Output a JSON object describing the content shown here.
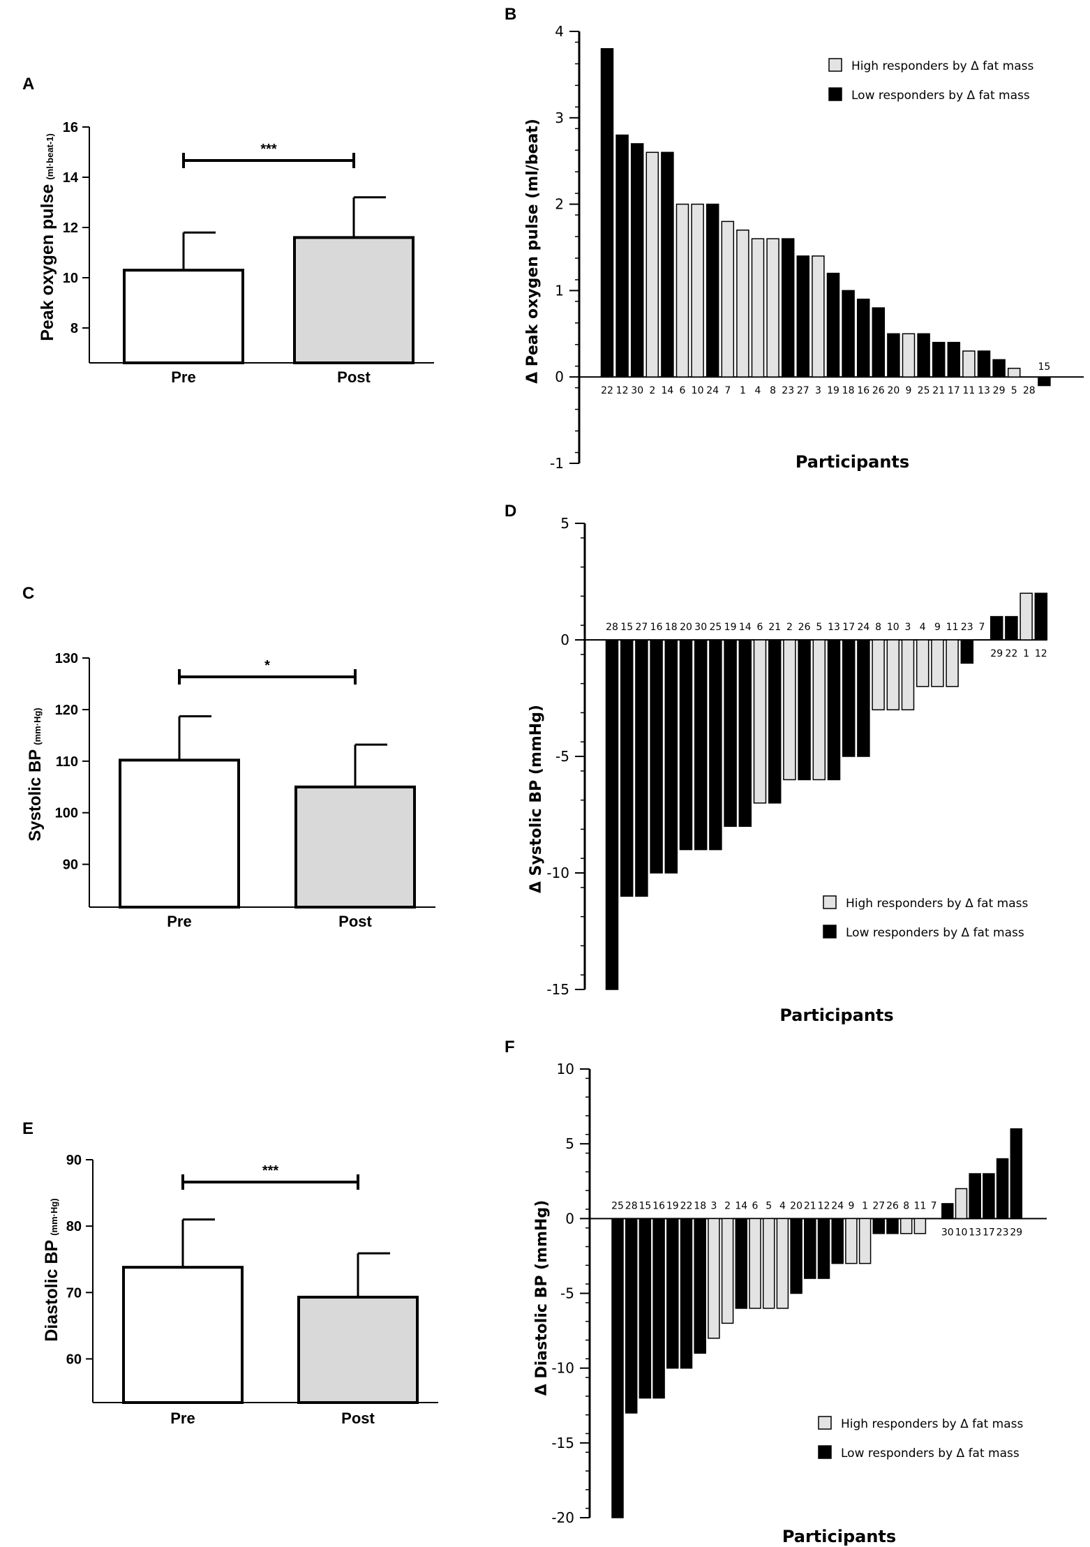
{
  "colors": {
    "high": "#e3e3e3",
    "low": "#000000",
    "pre": "#ffffff",
    "post": "#d9d9d9",
    "axis": "#000000"
  },
  "chart_data": [
    {
      "panel": "A",
      "type": "bar",
      "ylabel": "Peak oxygen pulse",
      "yunit": "(ml·beat-1)",
      "categories": [
        "Pre",
        "Post"
      ],
      "values": [
        10.3,
        11.6
      ],
      "errors": [
        1.5,
        1.6
      ],
      "ylim": [
        7,
        16
      ],
      "yticks": [
        "8",
        "10",
        "12",
        "14",
        "16"
      ],
      "significance": "***"
    },
    {
      "panel": "B",
      "type": "bar",
      "ylabel": "Δ Peak oxygen pulse (ml/beat)",
      "xlabel": "Participants",
      "ylim": [
        -1,
        4
      ],
      "yticks": [
        "-1",
        "0",
        "1",
        "2",
        "3",
        "4"
      ],
      "legend": {
        "high": "High responders by Δ fat mass",
        "low": "Low responders by Δ fat mass"
      },
      "participants": [
        "22",
        "12",
        "30",
        "2",
        "14",
        "6",
        "10",
        "24",
        "7",
        "1",
        "4",
        "8",
        "23",
        "27",
        "3",
        "19",
        "18",
        "16",
        "26",
        "20",
        "9",
        "25",
        "21",
        "17",
        "11",
        "13",
        "29",
        "5",
        "28",
        "15"
      ],
      "values": [
        3.8,
        2.8,
        2.7,
        2.6,
        2.6,
        2.0,
        2.0,
        2.0,
        1.8,
        1.7,
        1.6,
        1.6,
        1.6,
        1.4,
        1.4,
        1.2,
        1.0,
        0.9,
        0.8,
        0.5,
        0.5,
        0.5,
        0.4,
        0.4,
        0.3,
        0.3,
        0.2,
        0.1,
        0.0,
        -0.1
      ],
      "groups": [
        "L",
        "L",
        "L",
        "H",
        "L",
        "H",
        "H",
        "L",
        "H",
        "H",
        "H",
        "H",
        "L",
        "L",
        "H",
        "L",
        "L",
        "L",
        "L",
        "L",
        "H",
        "L",
        "L",
        "L",
        "H",
        "L",
        "L",
        "H",
        "H",
        "L"
      ]
    },
    {
      "panel": "C",
      "type": "bar",
      "ylabel": "Systolic BP",
      "yunit": "(mm·Hg)",
      "categories": [
        "Pre",
        "Post"
      ],
      "values": [
        110.2,
        105.0
      ],
      "errors": [
        8.5,
        8.2
      ],
      "ylim": [
        84,
        130
      ],
      "yticks": [
        "90",
        "100",
        "110",
        "120",
        "130"
      ],
      "significance": "*"
    },
    {
      "panel": "D",
      "type": "bar",
      "ylabel": "Δ Systolic BP (mmHg)",
      "xlabel": "Participants",
      "ylim": [
        -15,
        5
      ],
      "yticks": [
        "-15",
        "-10",
        "-5",
        "0",
        "5"
      ],
      "legend": {
        "high": "High responders by Δ fat mass",
        "low": "Low responders by Δ fat mass"
      },
      "participants": [
        "28",
        "15",
        "27",
        "16",
        "18",
        "20",
        "30",
        "25",
        "19",
        "14",
        "6",
        "21",
        "2",
        "26",
        "5",
        "13",
        "17",
        "24",
        "8",
        "10",
        "3",
        "4",
        "9",
        "11",
        "23",
        "7",
        "29",
        "22",
        "1",
        "12"
      ],
      "values": [
        -15,
        -11,
        -11,
        -10,
        -10,
        -9,
        -9,
        -9,
        -8,
        -8,
        -7,
        -7,
        -6,
        -6,
        -6,
        -6,
        -5,
        -5,
        -3,
        -3,
        -3,
        -2,
        -2,
        -2,
        -1,
        0,
        1,
        1,
        2,
        2
      ],
      "groups": [
        "L",
        "L",
        "L",
        "L",
        "L",
        "L",
        "L",
        "L",
        "L",
        "L",
        "H",
        "L",
        "H",
        "L",
        "H",
        "L",
        "L",
        "L",
        "H",
        "H",
        "H",
        "H",
        "H",
        "H",
        "L",
        "L",
        "L",
        "L",
        "H",
        "L"
      ]
    },
    {
      "panel": "E",
      "type": "bar",
      "ylabel": "Diastolic BP",
      "yunit": "(mm·Hg)",
      "categories": [
        "Pre",
        "Post"
      ],
      "values": [
        73.8,
        69.3
      ],
      "errors": [
        7.2,
        6.6
      ],
      "ylim": [
        55,
        90
      ],
      "yticks": [
        "60",
        "70",
        "80",
        "90"
      ],
      "significance": "***"
    },
    {
      "panel": "F",
      "type": "bar",
      "ylabel": "Δ Diastolic BP (mmHg)",
      "xlabel": "Participants",
      "ylim": [
        -20,
        10
      ],
      "yticks": [
        "-20",
        "-15",
        "-10",
        "-5",
        "0",
        "5",
        "10"
      ],
      "legend": {
        "high": "High responders by Δ fat mass",
        "low": "Low responders by Δ fat mass"
      },
      "participants": [
        "25",
        "28",
        "15",
        "16",
        "19",
        "22",
        "18",
        "3",
        "2",
        "14",
        "6",
        "5",
        "4",
        "20",
        "21",
        "12",
        "24",
        "9",
        "1",
        "27",
        "26",
        "8",
        "11",
        "7",
        "30",
        "10",
        "13",
        "17",
        "23",
        "29"
      ],
      "values": [
        -20,
        -13,
        -12,
        -12,
        -10,
        -10,
        -9,
        -8,
        -7,
        -6,
        -6,
        -6,
        -6,
        -5,
        -4,
        -4,
        -3,
        -3,
        -3,
        -1,
        -1,
        -1,
        -1,
        0,
        1,
        2,
        3,
        3,
        4,
        6
      ],
      "groups": [
        "L",
        "L",
        "L",
        "L",
        "L",
        "L",
        "L",
        "H",
        "H",
        "L",
        "H",
        "H",
        "H",
        "L",
        "L",
        "L",
        "L",
        "H",
        "H",
        "L",
        "L",
        "H",
        "H",
        "L",
        "L",
        "H",
        "L",
        "L",
        "L",
        "L"
      ]
    }
  ]
}
